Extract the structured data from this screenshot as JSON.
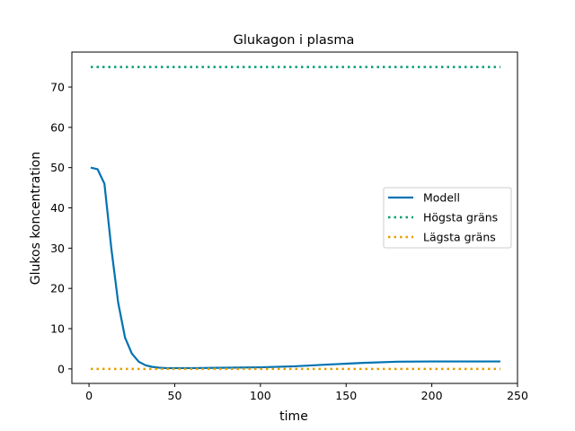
{
  "chart_data": {
    "type": "line",
    "title": "Glukagon i plasma",
    "xlabel": "time",
    "ylabel": "Glukos koncentration",
    "xlim": [
      -10,
      250
    ],
    "ylim": [
      -3.6,
      78.7
    ],
    "xticks": [
      0,
      50,
      100,
      150,
      200,
      250
    ],
    "yticks": [
      0,
      10,
      20,
      30,
      40,
      50,
      60,
      70
    ],
    "grid": false,
    "legend_position": "center-right",
    "series": [
      {
        "name": "Modell",
        "color": "#0072B2",
        "style": "solid",
        "x": [
          1,
          5,
          9,
          13,
          17,
          21,
          25,
          29,
          33,
          37,
          41,
          45,
          50,
          60,
          70,
          80,
          100,
          120,
          140,
          160,
          180,
          200,
          220,
          240
        ],
        "y": [
          50.0,
          49.6,
          46.0,
          30.0,
          16.5,
          7.8,
          3.8,
          1.8,
          0.9,
          0.5,
          0.3,
          0.2,
          0.2,
          0.2,
          0.25,
          0.3,
          0.4,
          0.65,
          1.1,
          1.5,
          1.8,
          1.85,
          1.85,
          1.85
        ]
      },
      {
        "name": "Högsta gräns",
        "color": "#009E73",
        "style": "dotted",
        "x": [
          1,
          240
        ],
        "y": [
          75,
          75
        ]
      },
      {
        "name": "Lägsta gräns",
        "color": "#E69F00",
        "style": "dotted",
        "x": [
          1,
          240
        ],
        "y": [
          0,
          0
        ]
      }
    ]
  }
}
